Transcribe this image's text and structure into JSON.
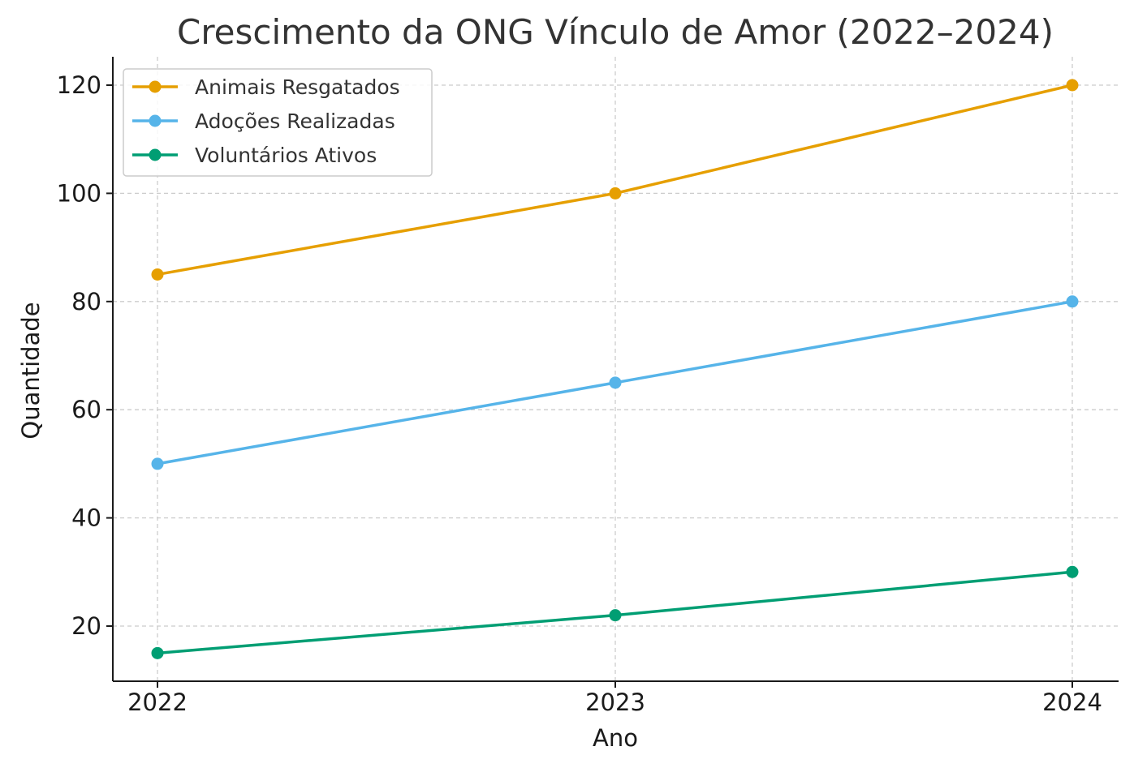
{
  "chart_data": {
    "type": "line",
    "title": "Crescimento da ONG Vínculo de Amor (2022–2024)",
    "xlabel": "Ano",
    "ylabel": "Quantidade",
    "x": [
      "2022",
      "2023",
      "2024"
    ],
    "yticks": [
      20,
      40,
      60,
      80,
      100,
      120
    ],
    "ylim": [
      10,
      125
    ],
    "grid": true,
    "legend_position": "top-left",
    "series": [
      {
        "name": "Animais Resgatados",
        "values": [
          85,
          100,
          120
        ],
        "color": "#E69F00"
      },
      {
        "name": "Adoções Realizadas",
        "values": [
          50,
          65,
          80
        ],
        "color": "#56B4E9"
      },
      {
        "name": "Voluntários Ativos",
        "values": [
          15,
          22,
          30
        ],
        "color": "#009E73"
      }
    ]
  }
}
